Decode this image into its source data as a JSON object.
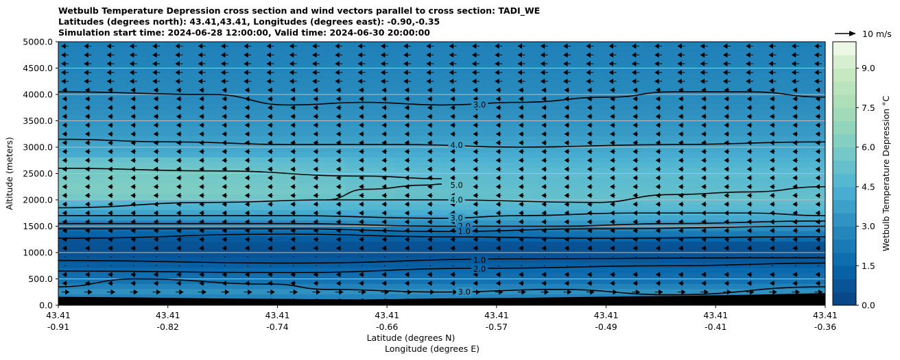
{
  "chart_data": {
    "type": "contour",
    "title_lines": [
      "Wetbulb Temperature Depression cross section and wind vectors parallel to cross section: TADI_WE",
      "Latitudes (degrees north): 43.41,43.41, Longitudes (degrees east): -0.90,-0.35",
      "Simulation start time: 2024-06-28 12:00:00, Valid time: 2024-06-30 20:00:00"
    ],
    "xlabel_lines": [
      "Latitude (degrees N)",
      "Longitude (degrees E)"
    ],
    "ylabel": "Altitude (meters)",
    "ylim": [
      0,
      5000
    ],
    "y_ticks": [
      "0.0",
      "500.0",
      "1000.0",
      "1500.0",
      "2000.0",
      "2500.0",
      "3000.0",
      "3500.0",
      "4000.0",
      "4500.0",
      "5000.0"
    ],
    "x_ticks": [
      {
        "lat": "43.41",
        "lon": "-0.91"
      },
      {
        "lat": "43.41",
        "lon": "-0.82"
      },
      {
        "lat": "43.41",
        "lon": "-0.74"
      },
      {
        "lat": "43.41",
        "lon": "-0.66"
      },
      {
        "lat": "43.41",
        "lon": "-0.57"
      },
      {
        "lat": "43.41",
        "lon": "-0.49"
      },
      {
        "lat": "43.41",
        "lon": "-0.41"
      },
      {
        "lat": "43.41",
        "lon": "-0.36"
      }
    ],
    "colorbar": {
      "label": "Wetbulb Temperature Depression $^\\circ$C",
      "range": [
        0,
        10
      ],
      "ticks": [
        "0.0",
        "1.5",
        "3.0",
        "4.5",
        "6.0",
        "7.5",
        "9.0"
      ],
      "colormap": "GnBu"
    },
    "contour_line_labels": [
      "1.0",
      "2.0",
      "3.0",
      "4.0",
      "5.0"
    ],
    "wind_vector_key": "10 m/s",
    "wind_pattern": {
      "upper_levels": "westward (easterly flow)",
      "lowest_levels": "eastward (westerly flow)"
    },
    "grid": true
  },
  "colors": {
    "moist": "#084081",
    "dry_max": "#f7fcf0",
    "terrain": "#000000",
    "grid": "#bdbdbd"
  }
}
